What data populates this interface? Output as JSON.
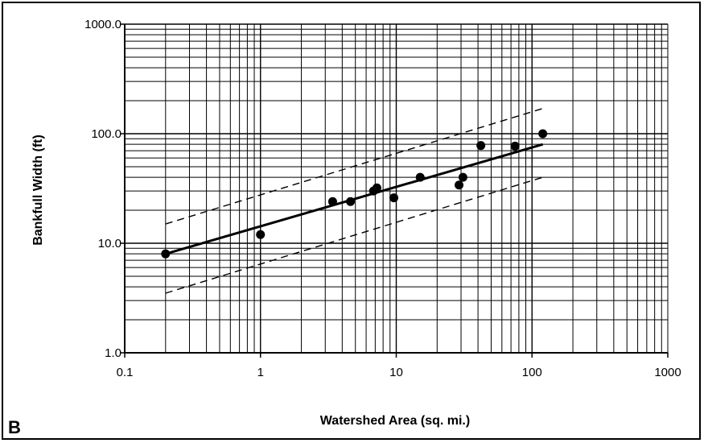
{
  "chart_data": {
    "type": "scatter",
    "title": "",
    "panel_label": "B",
    "xlabel": "Watershed Area (sq. mi.)",
    "ylabel": "Bankfull Width (ft)",
    "x_scale": "log",
    "y_scale": "log",
    "xlim": [
      0.1,
      1000
    ],
    "ylim": [
      1,
      1000
    ],
    "x_tick_labels": [
      "0.1",
      "1",
      "10",
      "100",
      "1000"
    ],
    "x_tick_values": [
      0.1,
      1,
      10,
      100,
      1000
    ],
    "y_tick_labels": [
      "1.0",
      "10.0",
      "100.0",
      "1000.0"
    ],
    "y_tick_values": [
      1,
      10,
      100,
      1000
    ],
    "grid": true,
    "colors": {
      "points": "#000000",
      "lines": "#000000",
      "grid": "#000000"
    },
    "series": [
      {
        "kind": "points",
        "x": [
          0.2,
          1.0,
          3.4,
          4.6,
          6.8,
          7.2,
          9.6,
          15.0,
          29.0,
          31.0,
          42.0,
          75.0,
          120.0
        ],
        "y": [
          8.0,
          12.0,
          24.0,
          24.0,
          30.0,
          32.0,
          26.0,
          40.0,
          34.0,
          40.0,
          78.0,
          77.0,
          100.0
        ]
      },
      {
        "kind": "regression",
        "style": "solid",
        "x": [
          0.2,
          120
        ],
        "y": [
          8.0,
          80.0
        ]
      },
      {
        "kind": "upper-bound",
        "style": "dashed",
        "x": [
          0.2,
          120
        ],
        "y": [
          15.0,
          170.0
        ]
      },
      {
        "kind": "lower-bound",
        "style": "dashed",
        "x": [
          0.2,
          120
        ],
        "y": [
          3.5,
          40.0
        ]
      }
    ]
  }
}
